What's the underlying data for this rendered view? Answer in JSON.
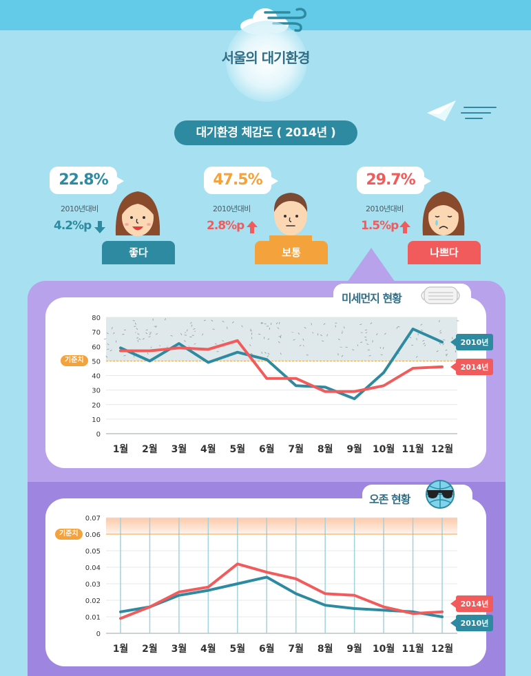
{
  "header": {
    "title": "서울의 대기환경",
    "subtitle": "대기환경 체감도 ( 2014년 )"
  },
  "perception": [
    {
      "percent": "22.8%",
      "compare_label": "2010년대비",
      "delta": "4.2%p",
      "direction": "down",
      "label": "좋다",
      "color": "#2d8aa0",
      "face": "happy"
    },
    {
      "percent": "47.5%",
      "compare_label": "2010년대비",
      "delta": "2.8%p",
      "direction": "up",
      "label": "보통",
      "color": "#f4a23c",
      "face": "neutral"
    },
    {
      "percent": "29.7%",
      "compare_label": "2010년대비",
      "delta": "1.5%p",
      "direction": "up",
      "label": "나쁘다",
      "color": "#f25b5b",
      "face": "sad"
    }
  ],
  "sections": {
    "pm": "미세먼지 현황",
    "ozone": "오존 현황"
  },
  "reference_label": "기준치",
  "colors": {
    "series_2010": "#2d8aa0",
    "series_2014": "#f25b5b",
    "accent_down": "#2d8aa0",
    "accent_up": "#f25b5b"
  },
  "chart_data": [
    {
      "type": "line",
      "title": "미세먼지 현황",
      "categories": [
        "1월",
        "2월",
        "3월",
        "4월",
        "5월",
        "6월",
        "7월",
        "8월",
        "9월",
        "10월",
        "11월",
        "12월"
      ],
      "ylim": [
        0,
        80
      ],
      "yticks": [
        "0",
        "10",
        "20",
        "30",
        "40",
        "50",
        "60",
        "70",
        "80"
      ],
      "reference": 50,
      "series": [
        {
          "name": "2010년",
          "values": [
            59,
            50,
            62,
            49,
            56,
            51,
            33,
            32,
            24,
            42,
            72,
            63
          ]
        },
        {
          "name": "2014년",
          "values": [
            57,
            57,
            59,
            58,
            64,
            38,
            38,
            29,
            29,
            33,
            45,
            46
          ]
        }
      ],
      "grid": true
    },
    {
      "type": "line",
      "title": "오존 현황",
      "categories": [
        "1월",
        "2월",
        "3월",
        "4월",
        "5월",
        "6월",
        "7월",
        "8월",
        "9월",
        "10월",
        "11월",
        "12월"
      ],
      "ylim": [
        0,
        0.07
      ],
      "yticks": [
        "0",
        "0.01",
        "0.02",
        "0.03",
        "0.04",
        "0.05",
        "0.06",
        "0.07"
      ],
      "reference": 0.06,
      "series": [
        {
          "name": "2010년",
          "values": [
            0.013,
            0.016,
            0.023,
            0.026,
            0.03,
            0.034,
            0.024,
            0.017,
            0.015,
            0.014,
            0.013,
            0.01
          ]
        },
        {
          "name": "2014년",
          "values": [
            0.009,
            0.016,
            0.025,
            0.028,
            0.042,
            0.037,
            0.033,
            0.024,
            0.023,
            0.016,
            0.012,
            0.013
          ]
        }
      ],
      "grid": true
    }
  ]
}
